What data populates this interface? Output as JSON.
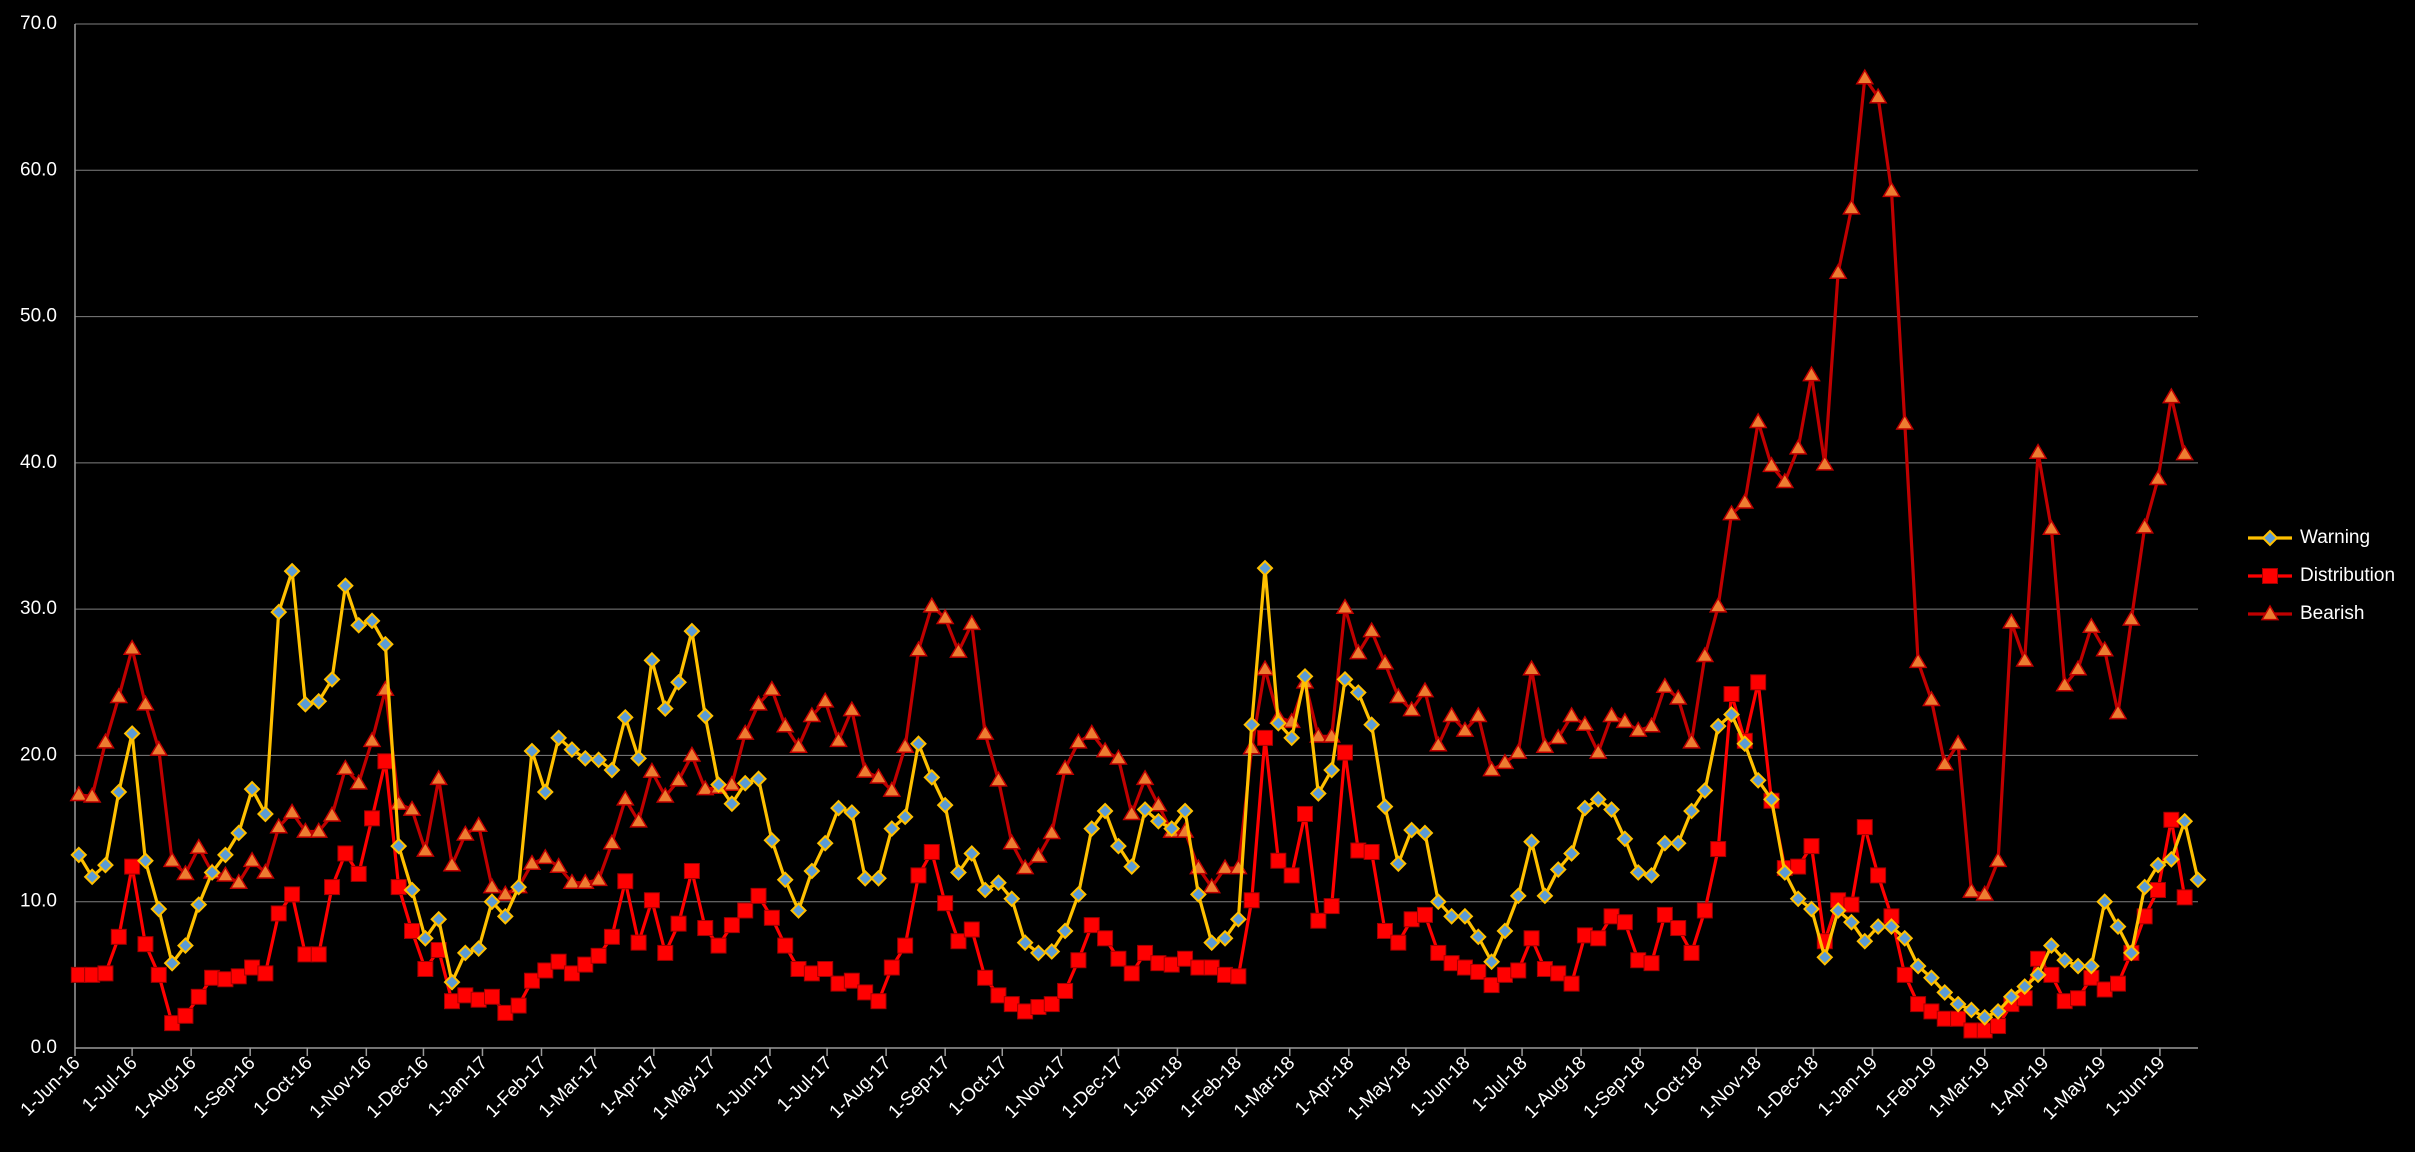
{
  "chart_data": {
    "type": "line",
    "title": "",
    "xlabel": "",
    "ylabel": "",
    "ylim": [
      0,
      70
    ],
    "yticks": [
      "0.0",
      "10.0",
      "20.0",
      "30.0",
      "40.0",
      "50.0",
      "60.0",
      "70.0"
    ],
    "grid": true,
    "legend_position": "right",
    "background": "#000000",
    "x_start": "2016-06-03",
    "x_interval_days": 7,
    "x_ticks": [
      "1-Jun-16",
      "1-Jul-16",
      "1-Aug-16",
      "1-Sep-16",
      "1-Oct-16",
      "1-Nov-16",
      "1-Dec-16",
      "1-Jan-17",
      "1-Feb-17",
      "1-Mar-17",
      "1-Apr-17",
      "1-May-17",
      "1-Jun-17",
      "1-Jul-17",
      "1-Aug-17",
      "1-Sep-17",
      "1-Oct-17",
      "1-Nov-17",
      "1-Dec-17",
      "1-Jan-18",
      "1-Feb-18",
      "1-Mar-18",
      "1-Apr-18",
      "1-May-18",
      "1-Jun-18",
      "1-Jul-18",
      "1-Aug-18",
      "1-Sep-18",
      "1-Oct-18",
      "1-Nov-18",
      "1-Dec-18",
      "1-Jan-19",
      "1-Feb-19",
      "1-Mar-19",
      "1-Apr-19",
      "1-May-19",
      "1-Jun-19"
    ],
    "series": [
      {
        "name": "Warning",
        "color": "#ffc000",
        "marker": "diamond",
        "marker_fill": "#5b9bd5",
        "values": [
          13.2,
          11.7,
          12.5,
          17.5,
          21.5,
          12.8,
          9.5,
          5.8,
          7.0,
          9.8,
          12.0,
          13.2,
          14.7,
          17.7,
          16.0,
          29.8,
          32.6,
          23.5,
          23.7,
          25.2,
          31.6,
          28.9,
          29.2,
          27.6,
          13.8,
          10.8,
          7.5,
          8.8,
          4.5,
          6.5,
          6.8,
          10.0,
          9.0,
          11.0,
          20.3,
          17.5,
          21.2,
          20.4,
          19.8,
          19.7,
          19.0,
          22.6,
          19.8,
          26.5,
          23.2,
          25.0,
          28.5,
          22.7,
          18.0,
          16.7,
          18.1,
          18.4,
          14.2,
          11.5,
          9.4,
          12.1,
          14.0,
          16.4,
          16.1,
          11.6,
          11.6,
          15.0,
          15.8,
          20.8,
          18.5,
          16.6,
          12.0,
          13.3,
          10.8,
          11.3,
          10.2,
          7.2,
          6.5,
          6.6,
          8.0,
          10.5,
          15.0,
          16.2,
          13.8,
          12.4,
          16.3,
          15.5,
          15.0,
          16.2,
          10.5,
          7.2,
          7.5,
          8.8,
          22.1,
          32.8,
          22.2,
          21.2,
          25.4,
          17.4,
          19.0,
          25.2,
          24.3,
          22.1,
          16.5,
          12.6,
          14.9,
          14.7,
          10.0,
          9.0,
          9.0,
          7.6,
          5.9,
          8.0,
          10.4,
          14.1,
          10.4,
          12.2,
          13.3,
          16.4,
          17.0,
          16.3,
          14.3,
          12.0,
          11.8,
          14.0,
          14.0,
          16.2,
          17.6,
          22.0,
          22.8,
          20.8,
          18.3,
          17.0,
          12.0,
          10.2,
          9.5,
          6.2,
          9.4,
          8.6,
          7.3,
          8.3,
          8.3,
          7.5,
          5.6,
          4.8,
          3.8,
          3.0,
          2.6,
          2.1,
          2.5,
          3.5,
          4.2,
          5.0,
          7.0,
          6.0,
          5.6,
          5.6,
          10.0,
          8.3,
          6.5,
          11.0,
          12.5,
          12.9,
          15.5,
          11.5
        ]
      },
      {
        "name": "Distribution",
        "color": "#ff0000",
        "marker": "square",
        "marker_fill": "#ff0000",
        "values": [
          5.0,
          5.0,
          5.1,
          7.6,
          12.4,
          7.1,
          5.0,
          1.7,
          2.2,
          3.5,
          4.8,
          4.7,
          4.9,
          5.5,
          5.1,
          9.2,
          10.5,
          6.4,
          6.4,
          11.0,
          13.3,
          11.9,
          15.7,
          19.6,
          11.0,
          8.0,
          5.4,
          6.7,
          3.2,
          3.6,
          3.3,
          3.5,
          2.4,
          2.9,
          4.6,
          5.3,
          5.9,
          5.1,
          5.7,
          6.3,
          7.6,
          11.4,
          7.2,
          10.1,
          6.5,
          8.5,
          12.1,
          8.2,
          7.0,
          8.4,
          9.4,
          10.4,
          8.9,
          7.0,
          5.4,
          5.1,
          5.4,
          4.4,
          4.6,
          3.8,
          3.2,
          5.5,
          7.0,
          11.8,
          13.4,
          9.9,
          7.3,
          8.1,
          4.8,
          3.6,
          3.0,
          2.5,
          2.8,
          3.0,
          3.9,
          6.0,
          8.4,
          7.5,
          6.1,
          5.1,
          6.5,
          5.8,
          5.7,
          6.1,
          5.5,
          5.5,
          5.0,
          4.9,
          10.1,
          21.2,
          12.8,
          11.8,
          16.0,
          8.7,
          9.7,
          20.2,
          13.5,
          13.4,
          8.0,
          7.2,
          8.8,
          9.1,
          6.5,
          5.8,
          5.5,
          5.2,
          4.3,
          5.0,
          5.3,
          7.5,
          5.4,
          5.1,
          4.4,
          7.7,
          7.5,
          9.0,
          8.6,
          6.0,
          5.8,
          9.1,
          8.2,
          6.5,
          9.4,
          13.6,
          24.2,
          21.0,
          25.0,
          16.9,
          12.3,
          12.4,
          13.8,
          7.3,
          10.1,
          9.8,
          15.1,
          11.8,
          9.0,
          5.0,
          3.0,
          2.5,
          2.0,
          2.0,
          1.2,
          1.2,
          1.5,
          3.0,
          3.4,
          6.1,
          5.0,
          3.2,
          3.4,
          4.8,
          4.0,
          4.4,
          6.5,
          9.0,
          10.8,
          15.6,
          10.3
        ]
      },
      {
        "name": "Bearish",
        "color": "#c00000",
        "marker": "triangle",
        "marker_fill": "#ed7d31",
        "values": [
          17.3,
          17.2,
          20.9,
          24.0,
          27.3,
          23.5,
          20.4,
          12.8,
          11.9,
          13.7,
          12.0,
          11.8,
          11.3,
          12.8,
          12.0,
          15.1,
          16.1,
          14.8,
          14.8,
          15.9,
          19.1,
          18.1,
          21.0,
          24.5,
          16.7,
          16.3,
          13.5,
          18.4,
          12.5,
          14.6,
          15.2,
          11.0,
          10.5,
          11.0,
          12.6,
          13.0,
          12.4,
          11.3,
          11.3,
          11.5,
          14.0,
          17.0,
          15.5,
          18.9,
          17.2,
          18.3,
          20.0,
          17.7,
          17.8,
          18.0,
          21.5,
          23.5,
          24.5,
          22.0,
          20.6,
          22.7,
          23.7,
          21.0,
          23.1,
          18.9,
          18.5,
          17.6,
          20.6,
          27.2,
          30.2,
          29.4,
          27.1,
          29.0,
          21.5,
          18.3,
          14.0,
          12.3,
          13.1,
          14.7,
          19.1,
          20.9,
          21.5,
          20.3,
          19.8,
          16.0,
          18.4,
          16.6,
          14.8,
          14.8,
          12.3,
          11.0,
          12.3,
          12.3,
          20.5,
          25.9,
          22.6,
          22.3,
          25.0,
          21.3,
          21.3,
          30.1,
          27.0,
          28.5,
          26.3,
          24.0,
          23.1,
          24.4,
          20.7,
          22.7,
          21.7,
          22.7,
          19.0,
          19.5,
          20.2,
          25.9,
          20.6,
          21.2,
          22.7,
          22.1,
          20.2,
          22.7,
          22.3,
          21.7,
          22.0,
          24.7,
          23.9,
          20.9,
          26.8,
          30.2,
          36.5,
          37.3,
          42.8,
          39.8,
          38.7,
          41.0,
          46.0,
          39.9,
          53.0,
          57.4,
          66.3,
          65.0,
          58.6,
          42.7,
          26.4,
          23.8,
          19.4,
          20.8,
          10.7,
          10.5,
          12.8,
          29.1,
          26.5,
          40.7,
          35.5,
          24.8,
          25.9,
          28.8,
          27.2,
          22.9,
          29.3,
          35.6,
          38.9,
          44.5,
          40.6
        ]
      }
    ]
  }
}
